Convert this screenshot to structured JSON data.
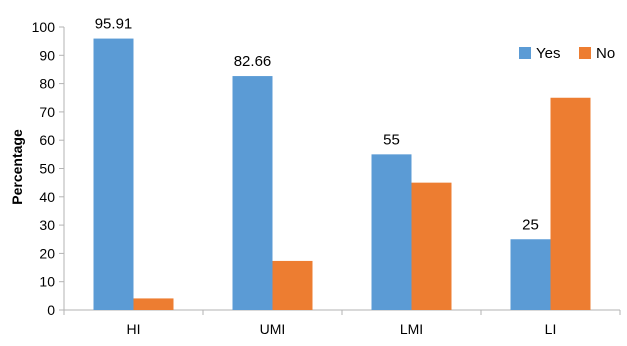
{
  "chart_data": {
    "type": "bar",
    "categories": [
      "HI",
      "UMI",
      "LMI",
      "LI"
    ],
    "series": [
      {
        "name": "Yes",
        "values": [
          95.91,
          82.66,
          55,
          25
        ],
        "color": "#5B9BD5"
      },
      {
        "name": "No",
        "values": [
          4.09,
          17.34,
          45,
          75
        ],
        "color": "#ED7D31"
      }
    ],
    "data_labels": {
      "Yes": [
        "95.91",
        "82.66",
        "55",
        "25"
      ]
    },
    "ylabel": "Percentage",
    "xlabel": "",
    "title": "",
    "ylim": [
      0,
      100
    ],
    "yticks": [
      0,
      10,
      20,
      30,
      40,
      50,
      60,
      70,
      80,
      90,
      100
    ],
    "grid": false,
    "legend_position": "top-right"
  }
}
